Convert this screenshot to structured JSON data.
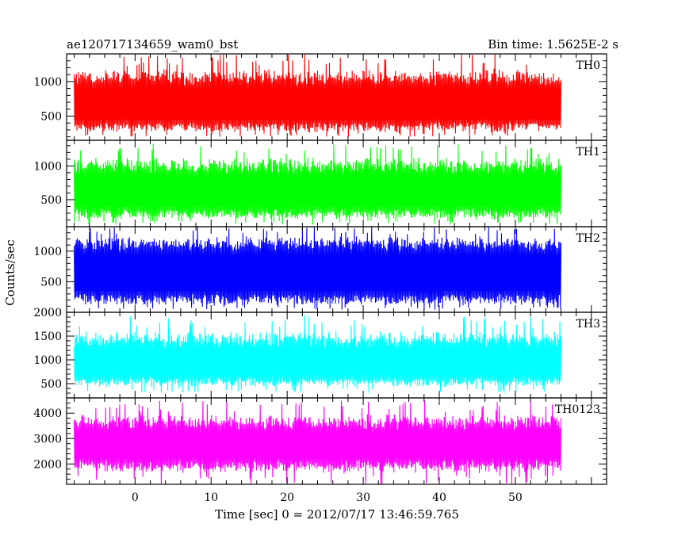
{
  "header": {
    "left": "ae120717134659_wam0_bst",
    "right": "Bin time: 1.5625E-2 s"
  },
  "chart_data": {
    "type": "line",
    "title": "ae120717134659_wam0_bst",
    "subtitle": "Bin time: 1.5625E-2 s",
    "xlabel": "Time [sec] 0 = 2012/07/17 13:46:59.765",
    "ylabel": "Counts/sec",
    "xlim": [
      -9,
      62
    ],
    "x_data_range": [
      -8,
      56
    ],
    "x_ticks": [
      0,
      10,
      20,
      30,
      40,
      50
    ],
    "x_tick_labels": [
      "0",
      "10",
      "20",
      "30",
      "40",
      "50"
    ],
    "panels": [
      {
        "name": "TH0",
        "color": "#ff0000",
        "ylim": [
          150,
          1400
        ],
        "y_ticks": [
          500,
          1000
        ],
        "y_tick_labels": [
          "500",
          "1000"
        ],
        "typical_low": 300,
        "typical_high": 1050,
        "extreme_low": 200,
        "extreme_high": 1400
      },
      {
        "name": "TH1",
        "color": "#00ff00",
        "ylim": [
          100,
          1380
        ],
        "y_ticks": [
          500,
          1000
        ],
        "y_tick_labels": [
          "500",
          "1000"
        ],
        "typical_low": 250,
        "typical_high": 1000,
        "extreme_low": 130,
        "extreme_high": 1350
      },
      {
        "name": "TH2",
        "color": "#0000ff",
        "ylim": [
          0,
          1400
        ],
        "y_ticks": [
          500,
          1000
        ],
        "y_tick_labels": [
          "500",
          "1000"
        ],
        "typical_low": 150,
        "typical_high": 1150,
        "extreme_low": 40,
        "extreme_high": 1400
      },
      {
        "name": "TH3",
        "color": "#00ffff",
        "ylim": [
          200,
          2000
        ],
        "y_ticks": [
          500,
          1000,
          1500,
          2000
        ],
        "y_tick_labels": [
          "500",
          "1000",
          "1500",
          "2000"
        ],
        "typical_low": 500,
        "typical_high": 1400,
        "extreme_low": 300,
        "extreme_high": 1950
      },
      {
        "name": "TH0123",
        "color": "#ff00ff",
        "ylim": [
          1200,
          4600
        ],
        "y_ticks": [
          2000,
          3000,
          4000
        ],
        "y_tick_labels": [
          "2000",
          "3000",
          "4000"
        ],
        "typical_low": 1900,
        "typical_high": 3600,
        "extreme_low": 1200,
        "extreme_high": 4500
      }
    ]
  }
}
